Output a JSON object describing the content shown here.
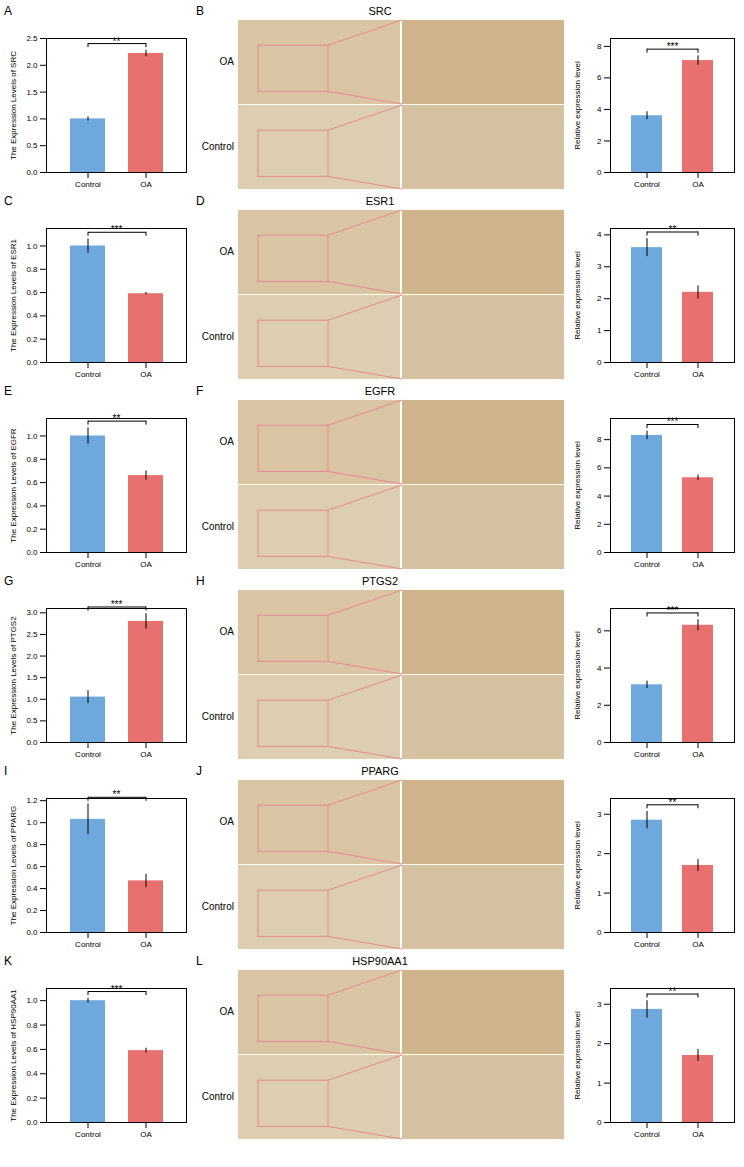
{
  "chart_data": [
    {
      "type": "bar",
      "panel": "A",
      "y_label": "The Expression Levels of SRC",
      "categories": [
        "Control",
        "OA"
      ],
      "values": [
        1.0,
        2.22
      ],
      "errors": [
        0.04,
        0.06
      ],
      "colors": [
        "#6fa8dc",
        "#e8716f"
      ],
      "ylim": [
        0,
        2.5
      ],
      "yticks": [
        {
          "value": 0,
          "label": "0.0"
        },
        {
          "value": 0.5,
          "label": "0.5"
        },
        {
          "value": 1,
          "label": "1.0"
        },
        {
          "value": 1.5,
          "label": "1.5"
        },
        {
          "value": 2,
          "label": "2.0"
        },
        {
          "value": 2.5,
          "label": "2.5"
        }
      ],
      "annotations": [
        "**"
      ]
    },
    {
      "type": "bar",
      "panel": "B",
      "title": "SRC",
      "image_labels": [
        "OA",
        "Control"
      ],
      "y_label": "Relative expression level",
      "categories": [
        "Control",
        "OA"
      ],
      "values": [
        3.6,
        7.1
      ],
      "errors": [
        0.25,
        0.3
      ],
      "colors": [
        "#6fa8dc",
        "#e8716f"
      ],
      "ylim": [
        0,
        8.5
      ],
      "yticks": [
        0,
        2,
        4,
        6,
        8
      ],
      "annotations": [
        "***"
      ]
    },
    {
      "type": "bar",
      "panel": "C",
      "y_label": "The Expression Levels of ESR1",
      "categories": [
        "Control",
        "OA"
      ],
      "values": [
        1.0,
        0.59
      ],
      "errors": [
        0.06,
        0.01
      ],
      "colors": [
        "#6fa8dc",
        "#e8716f"
      ],
      "ylim": [
        0,
        1.15
      ],
      "yticks": [
        {
          "value": 0,
          "label": "0.0"
        },
        {
          "value": 0.2,
          "label": "0.2"
        },
        {
          "value": 0.4,
          "label": "0.4"
        },
        {
          "value": 0.6,
          "label": "0.6"
        },
        {
          "value": 0.8,
          "label": "0.8"
        },
        {
          "value": 1,
          "label": "1.0"
        }
      ],
      "annotations": [
        "***"
      ]
    },
    {
      "type": "bar",
      "panel": "D",
      "title": "ESR1",
      "image_labels": [
        "OA",
        "Control"
      ],
      "y_label": "Relative expression level",
      "categories": [
        "Control",
        "OA"
      ],
      "values": [
        3.6,
        2.2
      ],
      "errors": [
        0.28,
        0.2
      ],
      "colors": [
        "#6fa8dc",
        "#e8716f"
      ],
      "ylim": [
        0,
        4.2
      ],
      "yticks": [
        0,
        1,
        2,
        3,
        4
      ],
      "annotations": [
        "**"
      ]
    },
    {
      "type": "bar",
      "panel": "E",
      "y_label": "The Expression Levels of EGFR",
      "categories": [
        "Control",
        "OA"
      ],
      "values": [
        1.0,
        0.66
      ],
      "errors": [
        0.07,
        0.04
      ],
      "colors": [
        "#6fa8dc",
        "#e8716f"
      ],
      "ylim": [
        0,
        1.15
      ],
      "yticks": [
        {
          "value": 0,
          "label": "0.0"
        },
        {
          "value": 0.2,
          "label": "0.2"
        },
        {
          "value": 0.4,
          "label": "0.4"
        },
        {
          "value": 0.6,
          "label": "0.6"
        },
        {
          "value": 0.8,
          "label": "0.8"
        },
        {
          "value": 1,
          "label": "1.0"
        }
      ],
      "annotations": [
        "**"
      ]
    },
    {
      "type": "bar",
      "panel": "F",
      "title": "EGFR",
      "image_labels": [
        "OA",
        "Control"
      ],
      "y_label": "Relative expression level",
      "categories": [
        "Control",
        "OA"
      ],
      "values": [
        8.3,
        5.3
      ],
      "errors": [
        0.3,
        0.2
      ],
      "colors": [
        "#6fa8dc",
        "#e8716f"
      ],
      "ylim": [
        0,
        9.5
      ],
      "yticks": [
        0,
        2,
        4,
        6,
        8
      ],
      "annotations": [
        "***"
      ]
    },
    {
      "type": "bar",
      "panel": "G",
      "y_label": "The Expression Levels of PTGS2",
      "categories": [
        "Control",
        "OA"
      ],
      "values": [
        1.05,
        2.8
      ],
      "errors": [
        0.15,
        0.18
      ],
      "colors": [
        "#6fa8dc",
        "#e8716f"
      ],
      "ylim": [
        0,
        3.1
      ],
      "yticks": [
        {
          "value": 0,
          "label": "0.0"
        },
        {
          "value": 0.5,
          "label": "0.5"
        },
        {
          "value": 1,
          "label": "1.0"
        },
        {
          "value": 1.5,
          "label": "1.5"
        },
        {
          "value": 2,
          "label": "2.0"
        },
        {
          "value": 2.5,
          "label": "2.5"
        },
        {
          "value": 3,
          "label": "3.0"
        }
      ],
      "annotations": [
        "***"
      ]
    },
    {
      "type": "bar",
      "panel": "H",
      "title": "PTGS2",
      "image_labels": [
        "OA",
        "Control"
      ],
      "y_label": "Relative expression level",
      "categories": [
        "Control",
        "OA"
      ],
      "values": [
        3.1,
        6.3
      ],
      "errors": [
        0.2,
        0.3
      ],
      "colors": [
        "#6fa8dc",
        "#e8716f"
      ],
      "ylim": [
        0,
        7.2
      ],
      "yticks": [
        0,
        2,
        4,
        6
      ],
      "annotations": [
        "***"
      ]
    },
    {
      "type": "bar",
      "panel": "I",
      "y_label": "The Expression Levels of PPARG",
      "categories": [
        "Control",
        "OA"
      ],
      "values": [
        1.03,
        0.47
      ],
      "errors": [
        0.14,
        0.06
      ],
      "colors": [
        "#6fa8dc",
        "#e8716f"
      ],
      "ylim": [
        0,
        1.22
      ],
      "yticks": [
        {
          "value": 0,
          "label": "0.0"
        },
        {
          "value": 0.2,
          "label": "0.2"
        },
        {
          "value": 0.4,
          "label": "0.4"
        },
        {
          "value": 0.6,
          "label": "0.6"
        },
        {
          "value": 0.8,
          "label": "0.8"
        },
        {
          "value": 1,
          "label": "1.0"
        },
        {
          "value": 1.2,
          "label": "1.2"
        }
      ],
      "annotations": [
        "**"
      ]
    },
    {
      "type": "bar",
      "panel": "J",
      "title": "PPARG",
      "image_labels": [
        "OA",
        "Control"
      ],
      "y_label": "Relative expression level",
      "categories": [
        "Control",
        "OA"
      ],
      "values": [
        2.85,
        1.7
      ],
      "errors": [
        0.22,
        0.15
      ],
      "colors": [
        "#6fa8dc",
        "#e8716f"
      ],
      "ylim": [
        0,
        3.4
      ],
      "yticks": [
        0,
        1,
        2,
        3
      ],
      "annotations": [
        "**"
      ]
    },
    {
      "type": "bar",
      "panel": "K",
      "y_label": "The Expression Levels of HSP90AA1",
      "categories": [
        "Control",
        "OA"
      ],
      "values": [
        1.0,
        0.59
      ],
      "errors": [
        0.02,
        0.02
      ],
      "colors": [
        "#6fa8dc",
        "#e8716f"
      ],
      "ylim": [
        0,
        1.1
      ],
      "yticks": [
        {
          "value": 0,
          "label": "0.0"
        },
        {
          "value": 0.2,
          "label": "0.2"
        },
        {
          "value": 0.4,
          "label": "0.4"
        },
        {
          "value": 0.6,
          "label": "0.6"
        },
        {
          "value": 0.8,
          "label": "0.8"
        },
        {
          "value": 1,
          "label": "1.0"
        }
      ],
      "annotations": [
        "***"
      ]
    },
    {
      "type": "bar",
      "panel": "L",
      "title": "HSP90AA1",
      "image_labels": [
        "OA",
        "Control"
      ],
      "y_label": "Relative expression level",
      "categories": [
        "Control",
        "OA"
      ],
      "values": [
        2.87,
        1.7
      ],
      "errors": [
        0.22,
        0.15
      ],
      "colors": [
        "#6fa8dc",
        "#e8716f"
      ],
      "ylim": [
        0,
        3.4
      ],
      "yticks": [
        0,
        1,
        2,
        3
      ],
      "annotations": [
        "**"
      ]
    }
  ]
}
